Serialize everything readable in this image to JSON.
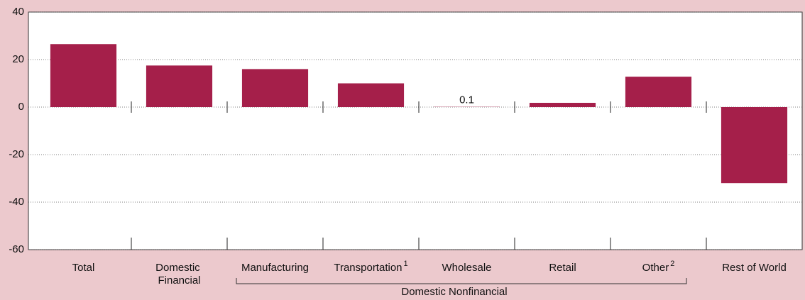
{
  "chart_data": {
    "type": "bar",
    "categories": [
      "Total",
      "Domestic Financial",
      "Manufacturing",
      "Transportation",
      "Wholesale",
      "Retail",
      "Other",
      "Rest of World"
    ],
    "category_notes": [
      null,
      null,
      null,
      "1",
      null,
      null,
      "2",
      null
    ],
    "values": [
      26.5,
      17.5,
      16,
      10,
      0.1,
      1.8,
      12.8,
      -32
    ],
    "value_labels": [
      null,
      null,
      null,
      null,
      "0.1",
      null,
      null,
      null
    ],
    "group_label": "Domestic Nonfinancial",
    "color": "#a51f4a",
    "ylim": [
      -60,
      40
    ],
    "yticks": [
      -60,
      -40,
      -20,
      0,
      20,
      40
    ],
    "grid": true
  }
}
